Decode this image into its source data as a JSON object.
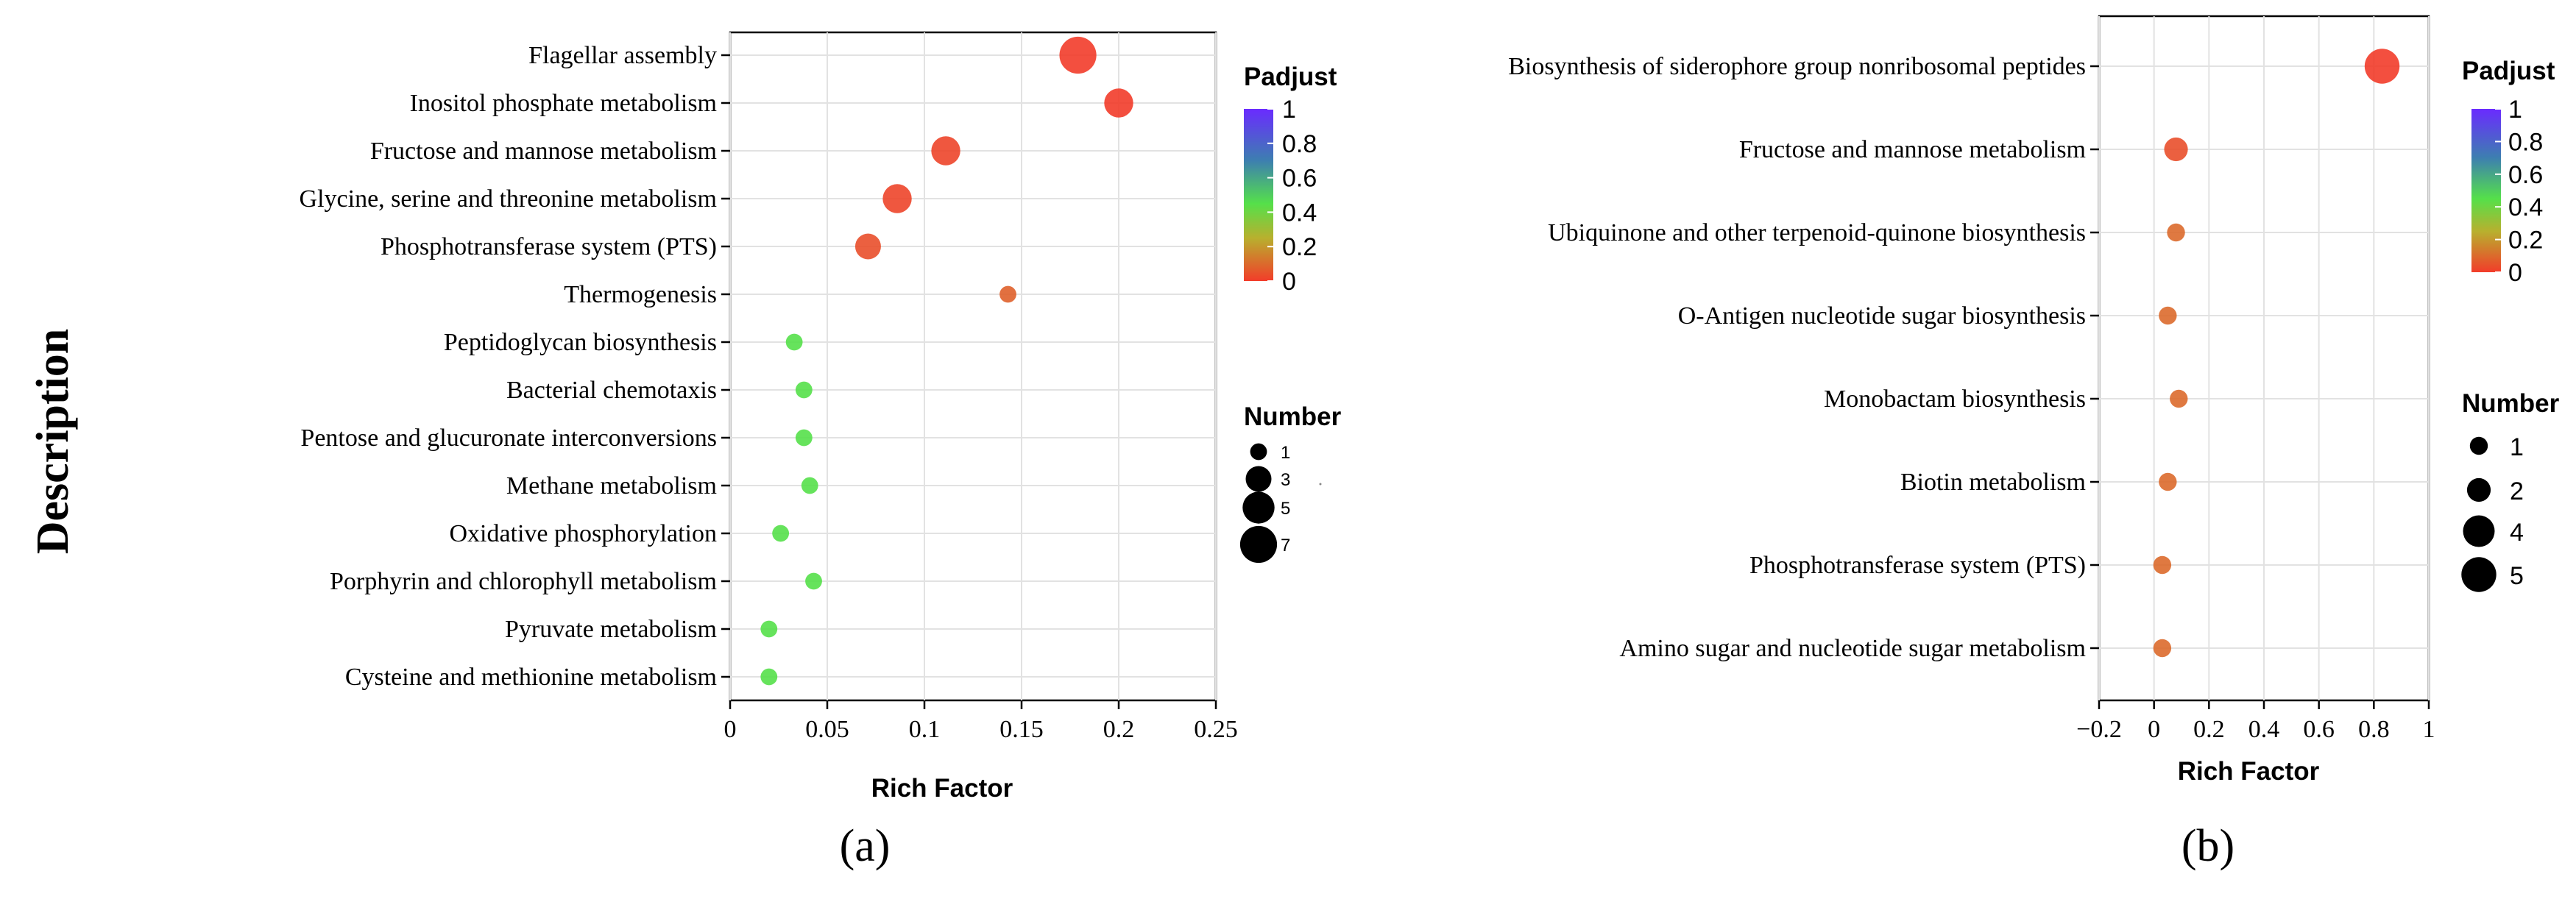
{
  "global_ylabel": "Description",
  "chart_data": [
    {
      "type": "scatter",
      "panel_label": "(a)",
      "xlabel": "Rich Factor",
      "xlim": [
        0,
        0.25
      ],
      "xticks": [
        "0",
        "0.05",
        "0.1",
        "0.15",
        "0.2",
        "0.25"
      ],
      "xtick_values": [
        0,
        0.05,
        0.1,
        0.15,
        0.2,
        0.25
      ],
      "grid": true,
      "categories": [
        "Flagellar assembly",
        "Inositol phosphate metabolism",
        "Fructose and mannose metabolism",
        "Glycine, serine and threonine metabolism",
        "Phosphotransferase system (PTS)",
        "Thermogenesis",
        "Peptidoglycan biosynthesis",
        "Bacterial chemotaxis",
        "Pentose and glucuronate interconversions",
        "Methane metabolism",
        "Oxidative phosphorylation",
        "Porphyrin and chlorophyll metabolism",
        "Pyruvate metabolism",
        "Cysteine and methionine metabolism"
      ],
      "x": [
        0.179,
        0.2,
        0.111,
        0.086,
        0.071,
        0.143,
        0.033,
        0.038,
        0.038,
        0.041,
        0.026,
        0.043,
        0.02,
        0.02
      ],
      "number": [
        7,
        4,
        4,
        4,
        3,
        1,
        1,
        1,
        1,
        1,
        1,
        1,
        1,
        1
      ],
      "padjust": [
        0.0,
        0.0,
        0.02,
        0.02,
        0.04,
        0.08,
        0.45,
        0.45,
        0.45,
        0.45,
        0.45,
        0.45,
        0.45,
        0.45
      ],
      "legend_color": {
        "title": "Padjust",
        "ticks": [
          "1",
          "0.8",
          "0.6",
          "0.4",
          "0.2",
          "0"
        ],
        "placement": "right"
      },
      "legend_size": {
        "title": "Number",
        "labels": [
          "1",
          "3",
          "5",
          "7"
        ],
        "values": [
          1,
          3,
          5,
          7
        ],
        "placement": "right"
      }
    },
    {
      "type": "scatter",
      "panel_label": "(b)",
      "xlabel": "Rich Factor",
      "xlim": [
        -0.2,
        1
      ],
      "xticks": [
        "−0.2",
        "0",
        "0.2",
        "0.4",
        "0.6",
        "0.8",
        "1"
      ],
      "xtick_values": [
        -0.2,
        0,
        0.2,
        0.4,
        0.6,
        0.8,
        1
      ],
      "grid": true,
      "categories": [
        "Biosynthesis of siderophore group nonribosomal peptides",
        "Fructose and mannose metabolism",
        "Ubiquinone and other terpenoid-quinone biosynthesis",
        "O-Antigen nucleotide sugar biosynthesis",
        "Monobactam biosynthesis",
        "Biotin metabolism",
        "Phosphotransferase system (PTS)",
        "Amino sugar and nucleotide sugar metabolism"
      ],
      "x": [
        0.83,
        0.08,
        0.08,
        0.05,
        0.09,
        0.05,
        0.03,
        0.03
      ],
      "number": [
        5,
        2,
        1,
        1,
        1,
        1,
        1,
        1
      ],
      "padjust": [
        0.0,
        0.04,
        0.1,
        0.1,
        0.1,
        0.1,
        0.1,
        0.1
      ],
      "legend_color": {
        "title": "Padjust",
        "ticks": [
          "1",
          "0.8",
          "0.6",
          "0.4",
          "0.2",
          "0"
        ],
        "placement": "right"
      },
      "legend_size": {
        "title": "Number",
        "labels": [
          "1",
          "2",
          "4",
          "5"
        ],
        "values": [
          1,
          2,
          4,
          5
        ],
        "placement": "right"
      }
    }
  ]
}
